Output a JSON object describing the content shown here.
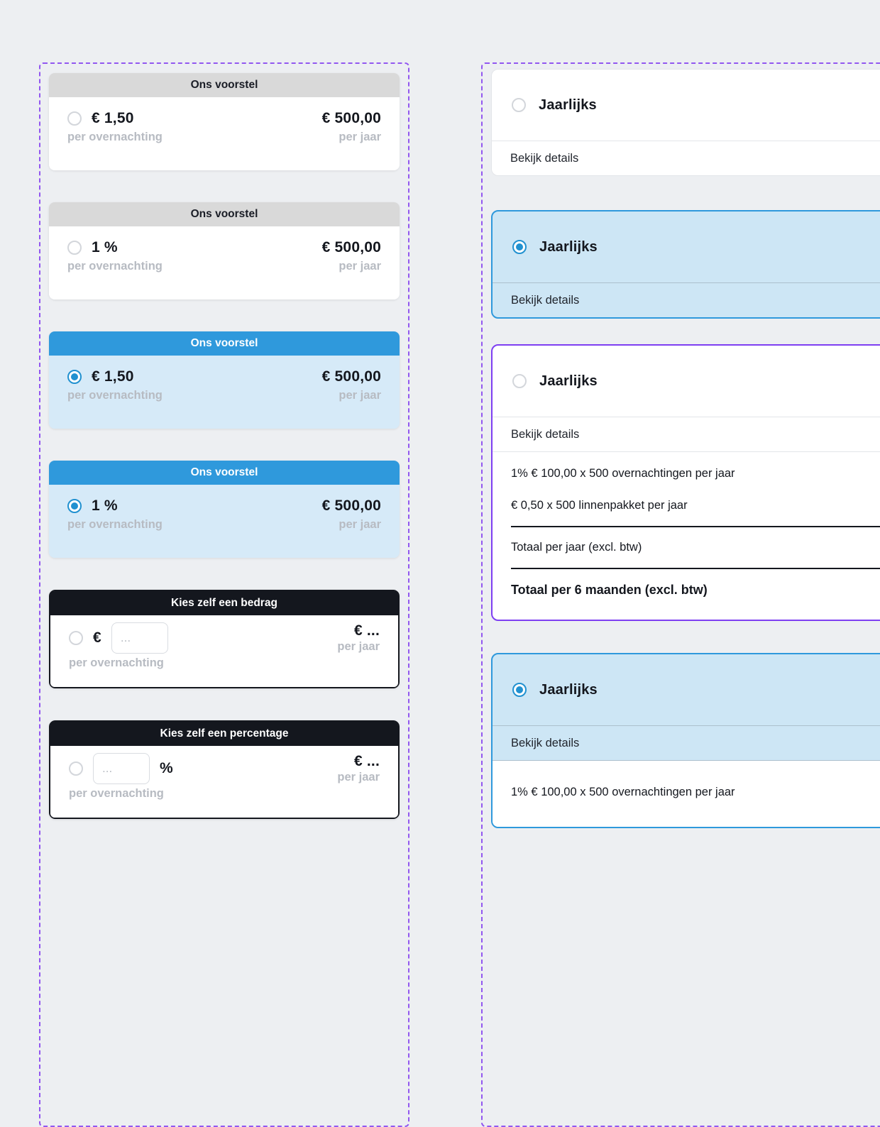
{
  "colors": {
    "accent_blue": "#2f99dc",
    "accent_purple": "#9257f0",
    "focus_purple": "#7e3ff2",
    "dark": "#14171e",
    "light_blue_bg": "#d6eaf8",
    "gray_header": "#d9d9d9"
  },
  "left_panel": {
    "cards": [
      {
        "header": "Ons voorstel",
        "left_value": "€ 1,50",
        "left_sub": "per overnachting",
        "right_value": "€ 500,00",
        "right_sub": "per jaar"
      },
      {
        "header": "Ons voorstel",
        "left_value": "1 %",
        "left_sub": "per overnachting",
        "right_value": "€ 500,00",
        "right_sub": "per jaar"
      },
      {
        "header": "Ons voorstel",
        "left_value": "€ 1,50",
        "left_sub": "per overnachting",
        "right_value": "€ 500,00",
        "right_sub": "per jaar"
      },
      {
        "header": "Ons voorstel",
        "left_value": "1 %",
        "left_sub": "per overnachting",
        "right_value": "€ 500,00",
        "right_sub": "per jaar"
      },
      {
        "header": "Kies zelf een bedrag",
        "currency_prefix": "€",
        "input_placeholder": "...",
        "left_sub": "per overnachting",
        "right_value": "€ ...",
        "right_sub": "per jaar"
      },
      {
        "header": "Kies zelf een percentage",
        "percent_suffix": "%",
        "input_placeholder": "...",
        "left_sub": "per overnachting",
        "right_value": "€ ...",
        "right_sub": "per jaar"
      }
    ]
  },
  "right_panel": {
    "cards": [
      {
        "title": "Jaarlijks",
        "details_label": "Bekijk details"
      },
      {
        "title": "Jaarlijks",
        "details_label": "Bekijk details"
      },
      {
        "title": "Jaarlijks",
        "details_label": "Bekijk details",
        "lines": [
          "1% € 100,00 x 500 overnachtingen per jaar",
          "€ 0,50 x 500 linnenpakket per jaar"
        ],
        "total_year_label": "Totaal per jaar (excl. btw)",
        "total_6months_label": "Totaal per 6 maanden (excl. btw)"
      },
      {
        "title": "Jaarlijks",
        "details_label": "Bekijk details",
        "lines": [
          "1% € 100,00 x 500 overnachtingen per jaar"
        ]
      }
    ]
  }
}
